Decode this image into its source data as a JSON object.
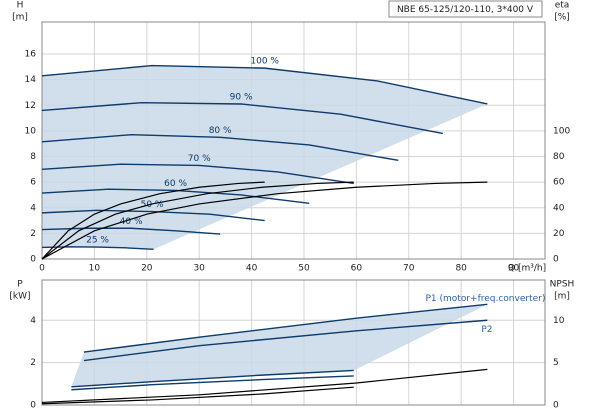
{
  "chart_data": [
    {
      "type": "line",
      "title": "NBE 65-125/120-110, 3*400 V",
      "ylabel": "H",
      "yunit": "[m]",
      "y2label": "eta",
      "y2unit": "[%]",
      "xlabel": "Q [m³/h]",
      "xlim": [
        0,
        96
      ],
      "xticks": [
        0,
        10,
        20,
        30,
        40,
        50,
        60,
        70,
        80,
        90
      ],
      "ylim": [
        0,
        18.5
      ],
      "yticks": [
        0,
        2,
        4,
        6,
        8,
        10,
        12,
        14,
        16
      ],
      "y2lim": [
        0,
        185
      ],
      "y2ticks": [
        0,
        20,
        40,
        60,
        80,
        100
      ],
      "grid": true,
      "series": [
        {
          "name": "100 %",
          "color": "#0d3b6b",
          "x": [
            0,
            21,
            42.5,
            64,
            85
          ],
          "values": [
            14.3,
            15.1,
            14.9,
            13.9,
            12.1
          ]
        },
        {
          "name": "90 %",
          "color": "#0d3b6b",
          "x": [
            0,
            19,
            38,
            57,
            76.5
          ],
          "values": [
            11.6,
            12.2,
            12.1,
            11.3,
            9.8
          ]
        },
        {
          "name": "80 %",
          "color": "#0d3b6b",
          "x": [
            0,
            17,
            34,
            51,
            68
          ],
          "values": [
            9.15,
            9.7,
            9.5,
            8.9,
            7.7
          ]
        },
        {
          "name": "70 %",
          "color": "#0d3b6b",
          "x": [
            0,
            15,
            30,
            45,
            59.5
          ],
          "values": [
            7.0,
            7.4,
            7.3,
            6.8,
            5.9
          ]
        },
        {
          "name": "60 %",
          "color": "#0d3b6b",
          "x": [
            0,
            12.7,
            25.5,
            38,
            51
          ],
          "values": [
            5.15,
            5.45,
            5.35,
            5.0,
            4.35
          ]
        },
        {
          "name": "50 %",
          "color": "#0d3b6b",
          "x": [
            0,
            10.5,
            21,
            32,
            42.5
          ],
          "values": [
            3.6,
            3.8,
            3.7,
            3.5,
            3.0
          ]
        },
        {
          "name": "40 %",
          "color": "#0d3b6b",
          "x": [
            0,
            8.5,
            17,
            25.5,
            34
          ],
          "values": [
            2.3,
            2.4,
            2.4,
            2.2,
            1.95
          ]
        },
        {
          "name": "25 %",
          "color": "#0d3b6b",
          "x": [
            0,
            5.3,
            10.6,
            16,
            21.3
          ],
          "values": [
            0.9,
            0.95,
            0.93,
            0.87,
            0.76
          ]
        },
        {
          "color": "#000000",
          "axis": "y2",
          "x": [
            0,
            10,
            20,
            30,
            45,
            60,
            75,
            85
          ],
          "values": [
            0,
            22,
            35,
            43,
            51,
            56,
            59,
            60
          ]
        },
        {
          "color": "#000000",
          "axis": "y2",
          "x": [
            0,
            7,
            14,
            21,
            31.5,
            42,
            52.5,
            59.5
          ],
          "values": [
            0,
            22,
            35,
            43,
            51,
            56,
            59,
            60
          ]
        },
        {
          "color": "#000000",
          "axis": "y2",
          "x": [
            0,
            5,
            10,
            15,
            22.5,
            30,
            37.5,
            42.5
          ],
          "values": [
            0,
            22,
            35,
            43,
            51,
            56,
            59,
            60
          ]
        }
      ]
    },
    {
      "type": "line",
      "ylabel": "P",
      "yunit": "[kW]",
      "y2label": "NPSH",
      "y2unit": "[m]",
      "xlim": [
        0,
        96
      ],
      "xticks": [
        0,
        10,
        20,
        30,
        40,
        50,
        60,
        70,
        80,
        90
      ],
      "ylim": [
        0,
        5.9
      ],
      "yticks": [
        0,
        2,
        4
      ],
      "y2lim": [
        0,
        14.75
      ],
      "y2ticks": [
        0,
        5,
        10
      ],
      "grid": true,
      "series": [
        {
          "name": "P1 (motor+freq.converter)",
          "color": "#0d3b6b",
          "x": [
            8,
            30,
            60,
            85
          ],
          "values": [
            2.5,
            3.2,
            4.1,
            4.75
          ]
        },
        {
          "name": "P2",
          "color": "#0d3b6b",
          "x": [
            8,
            30,
            60,
            85
          ],
          "values": [
            2.1,
            2.8,
            3.5,
            4.0
          ]
        },
        {
          "color": "#0d3b6b",
          "x": [
            5.6,
            21,
            42,
            59.5
          ],
          "values": [
            0.86,
            1.1,
            1.41,
            1.63
          ]
        },
        {
          "color": "#0d3b6b",
          "x": [
            5.6,
            21,
            42,
            59.5
          ],
          "values": [
            0.72,
            0.96,
            1.2,
            1.37
          ]
        },
        {
          "color": "#000000",
          "axis": "y2",
          "x": [
            0,
            30,
            60,
            85
          ],
          "values": [
            0.3,
            1.2,
            2.6,
            4.2
          ]
        },
        {
          "color": "#000000",
          "axis": "y2",
          "x": [
            0,
            21,
            42,
            59.5
          ],
          "values": [
            0.15,
            0.6,
            1.3,
            2.1
          ]
        }
      ]
    }
  ]
}
